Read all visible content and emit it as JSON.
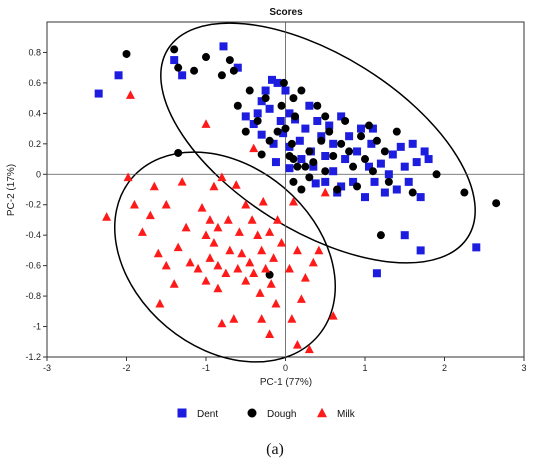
{
  "chart_data": {
    "type": "scatter",
    "title": "Scores",
    "xlabel": "PC-1 (77%)",
    "ylabel": "PC-2 (17%)",
    "xlim": [
      -3,
      3
    ],
    "ylim": [
      -1.2,
      1.0
    ],
    "xticks": [
      "-3",
      "-2",
      "-1",
      "0",
      "1",
      "2",
      "3"
    ],
    "yticks": [
      "-1.2",
      "-1",
      "-0.8",
      "-0.6",
      "-0.4",
      "-0.2",
      "0",
      "0.2",
      "0.4",
      "0.6",
      "0.8"
    ],
    "grid": false,
    "legend_position": "bottom",
    "series": [
      {
        "name": "Dent",
        "marker": "square",
        "color": "#1d1de0",
        "points": [
          [
            -2.35,
            0.53
          ],
          [
            -2.1,
            0.65
          ],
          [
            -1.4,
            0.75
          ],
          [
            -1.3,
            0.65
          ],
          [
            -0.78,
            0.84
          ],
          [
            -0.6,
            0.7
          ],
          [
            -0.5,
            0.38
          ],
          [
            -0.4,
            0.33
          ],
          [
            -0.35,
            0.4
          ],
          [
            -0.3,
            0.48
          ],
          [
            -0.3,
            0.26
          ],
          [
            -0.25,
            0.55
          ],
          [
            -0.2,
            0.43
          ],
          [
            -0.17,
            0.62
          ],
          [
            -0.15,
            0.2
          ],
          [
            -0.12,
            0.08
          ],
          [
            -0.1,
            0.6
          ],
          [
            -0.06,
            0.35
          ],
          [
            -0.03,
            0.27
          ],
          [
            0.0,
            0.55
          ],
          [
            0.05,
            0.4
          ],
          [
            0.05,
            0.18
          ],
          [
            0.05,
            0.04
          ],
          [
            0.12,
            0.36
          ],
          [
            0.18,
            0.22
          ],
          [
            0.2,
            0.1
          ],
          [
            0.25,
            0.3
          ],
          [
            0.3,
            0.45
          ],
          [
            0.32,
            0.15
          ],
          [
            0.35,
            0.05
          ],
          [
            0.38,
            -0.06
          ],
          [
            0.4,
            0.35
          ],
          [
            0.45,
            0.25
          ],
          [
            0.5,
            0.12
          ],
          [
            0.55,
            0.32
          ],
          [
            0.6,
            0.2
          ],
          [
            0.6,
            0.02
          ],
          [
            0.65,
            -0.12
          ],
          [
            0.7,
            0.38
          ],
          [
            0.75,
            0.1
          ],
          [
            0.8,
            0.25
          ],
          [
            0.85,
            -0.05
          ],
          [
            0.9,
            0.15
          ],
          [
            0.95,
            0.3
          ],
          [
            1.0,
            -0.15
          ],
          [
            1.05,
            0.05
          ],
          [
            1.08,
            0.2
          ],
          [
            1.1,
            0.3
          ],
          [
            1.12,
            -0.05
          ],
          [
            1.2,
            0.07
          ],
          [
            1.25,
            -0.12
          ],
          [
            1.3,
            0.0
          ],
          [
            1.35,
            0.13
          ],
          [
            1.4,
            -0.1
          ],
          [
            1.45,
            0.18
          ],
          [
            1.5,
            0.05
          ],
          [
            1.55,
            -0.05
          ],
          [
            1.6,
            0.2
          ],
          [
            1.65,
            0.08
          ],
          [
            1.7,
            -0.15
          ],
          [
            1.75,
            0.15
          ],
          [
            1.8,
            0.1
          ],
          [
            1.5,
            -0.4
          ],
          [
            1.7,
            -0.5
          ],
          [
            2.4,
            -0.48
          ],
          [
            1.15,
            -0.65
          ],
          [
            0.5,
            -0.05
          ],
          [
            0.7,
            -0.08
          ]
        ]
      },
      {
        "name": "Dough",
        "marker": "circle",
        "color": "#000000",
        "points": [
          [
            -2.0,
            0.79
          ],
          [
            -1.4,
            0.82
          ],
          [
            -1.35,
            0.7
          ],
          [
            -1.35,
            0.14
          ],
          [
            -1.15,
            0.68
          ],
          [
            -1.0,
            0.77
          ],
          [
            -0.8,
            0.65
          ],
          [
            -0.7,
            0.75
          ],
          [
            -0.65,
            0.68
          ],
          [
            -0.6,
            0.45
          ],
          [
            -0.5,
            0.28
          ],
          [
            -0.45,
            0.55
          ],
          [
            -0.35,
            0.35
          ],
          [
            -0.3,
            0.13
          ],
          [
            -0.25,
            0.5
          ],
          [
            -0.2,
            0.22
          ],
          [
            -0.1,
            0.28
          ],
          [
            -0.05,
            0.45
          ],
          [
            -0.02,
            0.6
          ],
          [
            0.0,
            0.3
          ],
          [
            0.05,
            0.12
          ],
          [
            0.08,
            0.2
          ],
          [
            0.1,
            0.5
          ],
          [
            0.12,
            0.38
          ],
          [
            0.15,
            0.05
          ],
          [
            0.2,
            0.55
          ],
          [
            0.25,
            0.05
          ],
          [
            0.3,
            0.15
          ],
          [
            0.35,
            0.08
          ],
          [
            0.4,
            0.45
          ],
          [
            0.45,
            0.22
          ],
          [
            0.5,
            0.38
          ],
          [
            0.5,
            0.02
          ],
          [
            0.55,
            0.28
          ],
          [
            0.6,
            0.12
          ],
          [
            0.65,
            -0.1
          ],
          [
            0.7,
            0.2
          ],
          [
            0.75,
            0.35
          ],
          [
            0.8,
            0.15
          ],
          [
            0.85,
            0.05
          ],
          [
            0.9,
            -0.08
          ],
          [
            0.95,
            0.25
          ],
          [
            1.0,
            0.1
          ],
          [
            1.05,
            0.32
          ],
          [
            1.1,
            0.02
          ],
          [
            1.15,
            0.22
          ],
          [
            1.25,
            0.15
          ],
          [
            1.3,
            -0.05
          ],
          [
            1.4,
            0.28
          ],
          [
            1.6,
            -0.12
          ],
          [
            1.9,
            0.0
          ],
          [
            2.25,
            -0.12
          ],
          [
            2.65,
            -0.19
          ],
          [
            1.2,
            -0.4
          ],
          [
            0.1,
            -0.05
          ],
          [
            0.2,
            -0.1
          ],
          [
            0.3,
            -0.02
          ],
          [
            -0.2,
            -0.66
          ],
          [
            0.1,
            0.1
          ]
        ]
      },
      {
        "name": "Milk",
        "marker": "triangle",
        "color": "#ff1a1a",
        "points": [
          [
            -2.25,
            -0.28
          ],
          [
            -1.95,
            0.52
          ],
          [
            -1.98,
            -0.02
          ],
          [
            -1.9,
            -0.2
          ],
          [
            -1.8,
            -0.38
          ],
          [
            -1.7,
            -0.27
          ],
          [
            -1.65,
            -0.08
          ],
          [
            -1.6,
            -0.52
          ],
          [
            -1.58,
            -0.85
          ],
          [
            -1.5,
            -0.2
          ],
          [
            -1.5,
            -0.6
          ],
          [
            -1.4,
            -0.72
          ],
          [
            -1.35,
            -0.48
          ],
          [
            -1.3,
            -0.05
          ],
          [
            -1.25,
            -0.35
          ],
          [
            -1.2,
            -0.58
          ],
          [
            -1.1,
            -0.62
          ],
          [
            -1.05,
            -0.22
          ],
          [
            -1.0,
            -0.4
          ],
          [
            -1.0,
            -0.7
          ],
          [
            -0.95,
            -0.55
          ],
          [
            -0.95,
            -0.3
          ],
          [
            -0.9,
            -0.08
          ],
          [
            -0.9,
            -0.45
          ],
          [
            -0.85,
            -0.6
          ],
          [
            -0.85,
            -0.75
          ],
          [
            -0.8,
            -0.02
          ],
          [
            -0.8,
            -0.98
          ],
          [
            -0.75,
            -0.65
          ],
          [
            -0.72,
            -0.3
          ],
          [
            -0.7,
            -0.5
          ],
          [
            -0.65,
            -0.95
          ],
          [
            -0.62,
            -0.07
          ],
          [
            -0.6,
            -0.62
          ],
          [
            -0.58,
            -0.38
          ],
          [
            -0.55,
            -0.52
          ],
          [
            -0.5,
            -0.7
          ],
          [
            -0.5,
            -0.2
          ],
          [
            -0.45,
            -0.58
          ],
          [
            -0.42,
            -0.3
          ],
          [
            -0.4,
            -0.65
          ],
          [
            -0.35,
            -0.4
          ],
          [
            -0.32,
            -0.78
          ],
          [
            -0.3,
            -0.5
          ],
          [
            -0.28,
            -0.18
          ],
          [
            -0.25,
            -0.62
          ],
          [
            -0.2,
            -0.38
          ],
          [
            -0.18,
            -0.72
          ],
          [
            -0.15,
            -0.55
          ],
          [
            -0.12,
            -0.85
          ],
          [
            -0.1,
            -0.3
          ],
          [
            -0.05,
            -0.45
          ],
          [
            0.05,
            -0.62
          ],
          [
            0.08,
            -0.95
          ],
          [
            0.1,
            -0.18
          ],
          [
            0.15,
            -0.5
          ],
          [
            0.2,
            -0.82
          ],
          [
            0.25,
            -0.68
          ],
          [
            0.3,
            -1.15
          ],
          [
            0.35,
            -0.58
          ],
          [
            0.42,
            -0.5
          ],
          [
            0.5,
            -0.12
          ],
          [
            0.6,
            -0.93
          ],
          [
            -0.4,
            0.17
          ],
          [
            -1.0,
            0.33
          ],
          [
            -0.2,
            -1.05
          ],
          [
            0.15,
            -1.12
          ],
          [
            -0.3,
            -0.95
          ],
          [
            -0.85,
            -0.35
          ]
        ]
      }
    ],
    "ellipses_present": true,
    "legend_labels": [
      "Dent",
      "Dough",
      "Milk"
    ]
  },
  "figure": {
    "caption": "(a)"
  }
}
